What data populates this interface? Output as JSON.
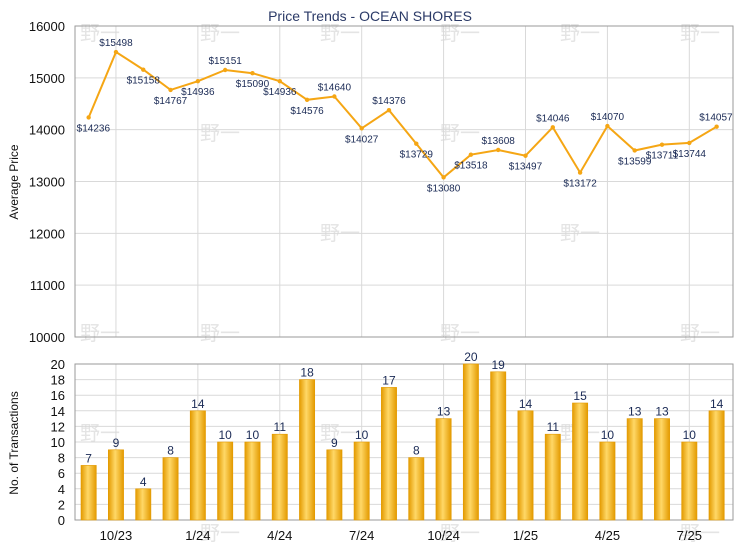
{
  "title": "Price Trends - OCEAN SHORES",
  "colors": {
    "line": "#f5a614",
    "bar_light": "#ffd867",
    "bar_dark": "#e39a00",
    "grid": "#d9d9d9",
    "axis": "#9a9a9a",
    "title": "#2b3a67"
  },
  "chart_data": [
    {
      "type": "line",
      "ylabel": "Average Price",
      "ylim": [
        10000,
        16000
      ],
      "y_ticks": [
        10000,
        11000,
        12000,
        13000,
        14000,
        15000,
        16000
      ],
      "values": [
        14236,
        15498,
        15158,
        14767,
        14936,
        15151,
        15090,
        14936,
        14576,
        14640,
        14027,
        14376,
        13729,
        13080,
        13518,
        13608,
        13497,
        14046,
        13172,
        14070,
        13599,
        13711,
        13744,
        14057
      ],
      "value_labels": [
        "$14236",
        "$15498",
        "$15158",
        "$14767",
        "$14936",
        "$15151",
        "$15090",
        "$14936",
        "$14576",
        "$14640",
        "$14027",
        "$14376",
        "$13729",
        "$13080",
        "$13518",
        "$13608",
        "$13497",
        "$14046",
        "$13172",
        "$14070",
        "$13599",
        "$13711",
        "$13744",
        "$14057"
      ]
    },
    {
      "type": "bar",
      "ylabel": "No. of Transactions",
      "ylim": [
        0,
        20
      ],
      "y_ticks": [
        0,
        2,
        4,
        6,
        8,
        10,
        12,
        14,
        16,
        18,
        20
      ],
      "values": [
        7,
        9,
        4,
        8,
        14,
        10,
        10,
        11,
        18,
        9,
        10,
        17,
        8,
        13,
        20,
        19,
        14,
        11,
        15,
        10,
        13,
        13,
        10,
        14
      ],
      "x_tick_labels": [
        "10/23",
        "1/24",
        "4/24",
        "7/24",
        "10/24",
        "1/25",
        "4/25",
        "7/25"
      ],
      "x_tick_positions": [
        2,
        5,
        8,
        11,
        14,
        17,
        20,
        23
      ]
    }
  ]
}
